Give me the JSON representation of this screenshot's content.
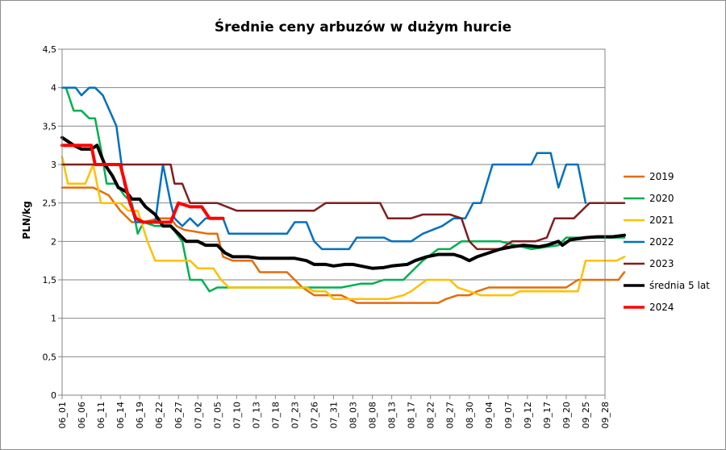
{
  "chart_data": {
    "type": "line",
    "title": "Średnie ceny arbuzów w dużym hurcie",
    "ylabel": "PLN/kg",
    "xlabel": "",
    "ylim": [
      0,
      4.5
    ],
    "yticks": [
      "0",
      "0,5",
      "1",
      "1,5",
      "2",
      "2,5",
      "3",
      "3,5",
      "4",
      "4,5"
    ],
    "grid": "horizontal",
    "legend_position": "right",
    "x_categories": [
      "06_01",
      "06_06",
      "06_11",
      "06_14",
      "06_19",
      "06_22",
      "06_27",
      "07_02",
      "07_05",
      "07_10",
      "07_13",
      "07_18",
      "07_23",
      "07_26",
      "07_31",
      "08_03",
      "08_08",
      "08_13",
      "08_17",
      "08_22",
      "08_27",
      "08_30",
      "09_04",
      "09_07",
      "09_12",
      "09_17",
      "09_20",
      "09_25",
      "09_28"
    ],
    "series": [
      {
        "name": "2019",
        "color": "#E46C0A",
        "width": 2.5,
        "points": [
          [
            0,
            2.7
          ],
          [
            0.6,
            2.7
          ],
          [
            1.6,
            2.7
          ],
          [
            2.4,
            2.6
          ],
          [
            3.0,
            2.4
          ],
          [
            3.6,
            2.25
          ],
          [
            4.2,
            2.25
          ],
          [
            5.0,
            2.3
          ],
          [
            5.6,
            2.3
          ],
          [
            5.9,
            2.2
          ],
          [
            6.3,
            2.15
          ],
          [
            7.5,
            2.1
          ],
          [
            8.0,
            2.1
          ],
          [
            8.3,
            1.8
          ],
          [
            8.8,
            1.75
          ],
          [
            9.8,
            1.75
          ],
          [
            10.2,
            1.6
          ],
          [
            11.6,
            1.6
          ],
          [
            12.4,
            1.4
          ],
          [
            13.0,
            1.3
          ],
          [
            14.4,
            1.3
          ],
          [
            15.2,
            1.2
          ],
          [
            16.6,
            1.2
          ],
          [
            18.0,
            1.2
          ],
          [
            19.4,
            1.2
          ],
          [
            19.8,
            1.25
          ],
          [
            20.4,
            1.3
          ],
          [
            21.0,
            1.3
          ],
          [
            21.4,
            1.35
          ],
          [
            22.0,
            1.4
          ],
          [
            24.0,
            1.4
          ],
          [
            26.0,
            1.4
          ],
          [
            26.6,
            1.5
          ],
          [
            28.2,
            1.5
          ],
          [
            28.7,
            1.5
          ],
          [
            29.0,
            1.6
          ]
        ]
      },
      {
        "name": "2020",
        "color": "#00B050",
        "width": 2.5,
        "points": [
          [
            0,
            4.0
          ],
          [
            0.2,
            4.0
          ],
          [
            0.6,
            3.7
          ],
          [
            1.0,
            3.7
          ],
          [
            1.4,
            3.6
          ],
          [
            1.7,
            3.6
          ],
          [
            2.0,
            3.2
          ],
          [
            2.3,
            2.75
          ],
          [
            2.8,
            2.75
          ],
          [
            3.2,
            2.6
          ],
          [
            3.6,
            2.5
          ],
          [
            3.9,
            2.1
          ],
          [
            4.2,
            2.25
          ],
          [
            4.8,
            2.2
          ],
          [
            5.6,
            2.2
          ],
          [
            6.2,
            2.0
          ],
          [
            6.6,
            1.5
          ],
          [
            7.2,
            1.5
          ],
          [
            7.6,
            1.35
          ],
          [
            8.0,
            1.4
          ],
          [
            9.0,
            1.4
          ],
          [
            12.0,
            1.4
          ],
          [
            14.4,
            1.4
          ],
          [
            15.4,
            1.45
          ],
          [
            16.0,
            1.45
          ],
          [
            16.6,
            1.5
          ],
          [
            17.6,
            1.5
          ],
          [
            18.0,
            1.6
          ],
          [
            18.6,
            1.75
          ],
          [
            19.4,
            1.9
          ],
          [
            20.0,
            1.9
          ],
          [
            20.6,
            2.0
          ],
          [
            22.6,
            2.0
          ],
          [
            24.2,
            1.9
          ],
          [
            25.6,
            1.95
          ],
          [
            26.0,
            2.05
          ],
          [
            27.0,
            2.05
          ],
          [
            29.0,
            2.05
          ]
        ]
      },
      {
        "name": "2021",
        "color": "#FFC000",
        "width": 2.5,
        "points": [
          [
            0,
            3.1
          ],
          [
            0.3,
            2.75
          ],
          [
            1.2,
            2.75
          ],
          [
            1.6,
            3.0
          ],
          [
            2.0,
            2.5
          ],
          [
            2.4,
            2.5
          ],
          [
            3.0,
            2.5
          ],
          [
            3.4,
            2.4
          ],
          [
            3.9,
            2.4
          ],
          [
            4.4,
            2.0
          ],
          [
            4.8,
            1.75
          ],
          [
            5.6,
            1.75
          ],
          [
            6.6,
            1.75
          ],
          [
            7.0,
            1.65
          ],
          [
            7.8,
            1.65
          ],
          [
            8.2,
            1.5
          ],
          [
            8.6,
            1.4
          ],
          [
            10.0,
            1.4
          ],
          [
            12.0,
            1.4
          ],
          [
            12.6,
            1.4
          ],
          [
            13.0,
            1.35
          ],
          [
            13.6,
            1.35
          ],
          [
            14.0,
            1.25
          ],
          [
            15.0,
            1.25
          ],
          [
            16.8,
            1.25
          ],
          [
            17.6,
            1.3
          ],
          [
            18.0,
            1.35
          ],
          [
            18.8,
            1.5
          ],
          [
            20.0,
            1.5
          ],
          [
            20.4,
            1.4
          ],
          [
            21.0,
            1.35
          ],
          [
            21.6,
            1.3
          ],
          [
            23.2,
            1.3
          ],
          [
            23.6,
            1.35
          ],
          [
            26.6,
            1.35
          ],
          [
            27.0,
            1.75
          ],
          [
            28.2,
            1.75
          ],
          [
            28.6,
            1.75
          ],
          [
            29.0,
            1.8
          ]
        ]
      },
      {
        "name": "2022",
        "color": "#0070C0",
        "width": 2.5,
        "points": [
          [
            0,
            4.0
          ],
          [
            0.7,
            4.0
          ],
          [
            1.0,
            3.9
          ],
          [
            1.4,
            4.0
          ],
          [
            1.7,
            4.0
          ],
          [
            2.1,
            3.9
          ],
          [
            2.8,
            3.5
          ],
          [
            3.2,
            2.75
          ],
          [
            3.8,
            2.25
          ],
          [
            4.2,
            2.25
          ],
          [
            4.8,
            2.25
          ],
          [
            5.2,
            3.0
          ],
          [
            5.6,
            2.5
          ],
          [
            5.8,
            2.3
          ],
          [
            6.2,
            2.2
          ],
          [
            6.6,
            2.3
          ],
          [
            7.0,
            2.2
          ],
          [
            7.4,
            2.3
          ],
          [
            7.8,
            2.3
          ],
          [
            8.3,
            2.3
          ],
          [
            8.6,
            2.1
          ],
          [
            9.4,
            2.1
          ],
          [
            10.0,
            2.1
          ],
          [
            11.6,
            2.1
          ],
          [
            12.0,
            2.25
          ],
          [
            12.6,
            2.25
          ],
          [
            13.0,
            2.0
          ],
          [
            13.4,
            1.9
          ],
          [
            14.8,
            1.9
          ],
          [
            15.2,
            2.05
          ],
          [
            16.0,
            2.05
          ],
          [
            16.6,
            2.05
          ],
          [
            17.0,
            2.0
          ],
          [
            18.0,
            2.0
          ],
          [
            18.6,
            2.1
          ],
          [
            19.6,
            2.2
          ],
          [
            20.2,
            2.3
          ],
          [
            20.8,
            2.3
          ],
          [
            21.2,
            2.5
          ],
          [
            21.6,
            2.5
          ],
          [
            22.2,
            3.0
          ],
          [
            24.2,
            3.0
          ],
          [
            24.5,
            3.15
          ],
          [
            25.2,
            3.15
          ],
          [
            25.6,
            2.7
          ],
          [
            26.0,
            3.0
          ],
          [
            26.6,
            3.0
          ],
          [
            27.0,
            2.5
          ]
        ]
      },
      {
        "name": "2023",
        "color": "#7F1F1F",
        "width": 2.5,
        "points": [
          [
            0,
            3.0
          ],
          [
            1.0,
            3.0
          ],
          [
            2.0,
            3.0
          ],
          [
            3.0,
            3.0
          ],
          [
            4.0,
            3.0
          ],
          [
            5.0,
            3.0
          ],
          [
            5.6,
            3.0
          ],
          [
            5.8,
            2.75
          ],
          [
            6.2,
            2.75
          ],
          [
            6.6,
            2.5
          ],
          [
            8.0,
            2.5
          ],
          [
            9.0,
            2.4
          ],
          [
            10.0,
            2.4
          ],
          [
            12.0,
            2.4
          ],
          [
            13.0,
            2.4
          ],
          [
            13.6,
            2.5
          ],
          [
            14.6,
            2.5
          ],
          [
            16.4,
            2.5
          ],
          [
            16.8,
            2.3
          ],
          [
            18.0,
            2.3
          ],
          [
            18.6,
            2.35
          ],
          [
            20.0,
            2.35
          ],
          [
            20.6,
            2.3
          ],
          [
            21.0,
            2.0
          ],
          [
            21.4,
            1.9
          ],
          [
            22.6,
            1.9
          ],
          [
            23.2,
            2.0
          ],
          [
            24.4,
            2.0
          ],
          [
            25.0,
            2.05
          ],
          [
            25.4,
            2.3
          ],
          [
            26.4,
            2.3
          ],
          [
            27.2,
            2.5
          ],
          [
            29.0,
            2.5
          ]
        ]
      },
      {
        "name": "średnia 5 lat",
        "color": "#000000",
        "width": 4,
        "points": [
          [
            0,
            3.35
          ],
          [
            0.6,
            3.25
          ],
          [
            1.0,
            3.2
          ],
          [
            1.5,
            3.2
          ],
          [
            1.8,
            3.25
          ],
          [
            2.2,
            3.0
          ],
          [
            2.6,
            2.85
          ],
          [
            2.9,
            2.7
          ],
          [
            3.3,
            2.65
          ],
          [
            3.6,
            2.55
          ],
          [
            4.0,
            2.55
          ],
          [
            4.3,
            2.45
          ],
          [
            4.8,
            2.35
          ],
          [
            5.2,
            2.2
          ],
          [
            5.6,
            2.2
          ],
          [
            6.0,
            2.1
          ],
          [
            6.4,
            2.0
          ],
          [
            7.0,
            2.0
          ],
          [
            7.4,
            1.95
          ],
          [
            8.0,
            1.95
          ],
          [
            8.4,
            1.85
          ],
          [
            8.8,
            1.8
          ],
          [
            9.6,
            1.8
          ],
          [
            10.2,
            1.78
          ],
          [
            11.0,
            1.78
          ],
          [
            12.0,
            1.78
          ],
          [
            12.6,
            1.75
          ],
          [
            13.0,
            1.7
          ],
          [
            13.6,
            1.7
          ],
          [
            14.0,
            1.68
          ],
          [
            14.6,
            1.7
          ],
          [
            15.0,
            1.7
          ],
          [
            15.4,
            1.68
          ],
          [
            16.0,
            1.65
          ],
          [
            16.6,
            1.66
          ],
          [
            17.0,
            1.68
          ],
          [
            17.8,
            1.7
          ],
          [
            18.2,
            1.75
          ],
          [
            18.8,
            1.8
          ],
          [
            19.4,
            1.83
          ],
          [
            20.2,
            1.83
          ],
          [
            20.6,
            1.8
          ],
          [
            21.0,
            1.75
          ],
          [
            21.4,
            1.8
          ],
          [
            22.0,
            1.85
          ],
          [
            22.6,
            1.9
          ],
          [
            23.2,
            1.93
          ],
          [
            23.8,
            1.95
          ],
          [
            24.6,
            1.93
          ],
          [
            25.0,
            1.95
          ],
          [
            25.6,
            2.0
          ],
          [
            25.8,
            1.95
          ],
          [
            26.2,
            2.02
          ],
          [
            27.0,
            2.05
          ],
          [
            27.6,
            2.06
          ],
          [
            28.4,
            2.06
          ],
          [
            29.0,
            2.08
          ]
        ]
      },
      {
        "name": "2024",
        "color": "#FF0000",
        "width": 4,
        "points": [
          [
            0,
            3.25
          ],
          [
            0.5,
            3.25
          ],
          [
            1.5,
            3.25
          ],
          [
            1.7,
            3.0
          ],
          [
            2.2,
            3.0
          ],
          [
            3.0,
            3.0
          ],
          [
            3.5,
            2.5
          ],
          [
            3.8,
            2.3
          ],
          [
            4.2,
            2.25
          ],
          [
            5.6,
            2.25
          ],
          [
            6.0,
            2.5
          ],
          [
            6.6,
            2.45
          ],
          [
            7.2,
            2.45
          ],
          [
            7.6,
            2.3
          ],
          [
            8.0,
            2.3
          ],
          [
            8.3,
            2.3
          ]
        ]
      }
    ]
  }
}
